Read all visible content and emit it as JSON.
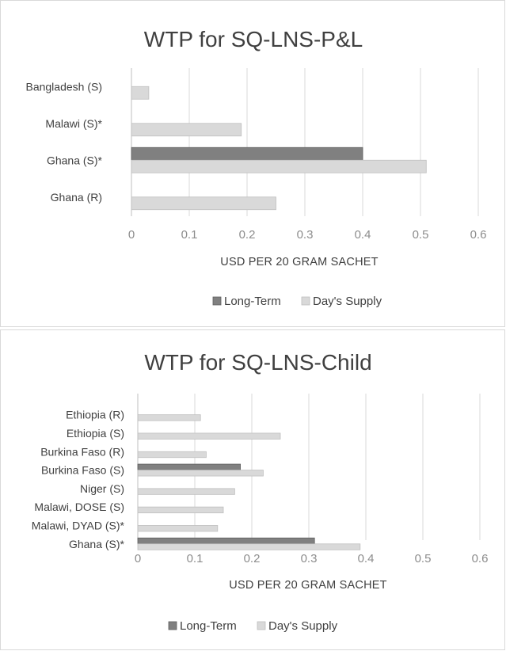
{
  "chart_data": [
    {
      "type": "bar",
      "orientation": "horizontal",
      "title": "WTP for SQ-LNS-P&L",
      "xlabel": "USD PER 20 GRAM SACHET",
      "categories": [
        "Bangladesh (S)",
        "Malawi (S)*",
        "Ghana (S)*",
        "Ghana (R)"
      ],
      "series": [
        {
          "name": "Long-Term",
          "color": "#808080",
          "values": [
            null,
            null,
            0.4,
            null
          ]
        },
        {
          "name": "Day's Supply",
          "color": "#d9d9d9",
          "values": [
            0.03,
            0.19,
            0.51,
            0.25
          ]
        }
      ],
      "xlim": [
        0,
        0.6
      ],
      "xticks": [
        "0",
        "0.1",
        "0.2",
        "0.3",
        "0.4",
        "0.5",
        "0.6"
      ],
      "grid": true,
      "legend": "bottom"
    },
    {
      "type": "bar",
      "orientation": "horizontal",
      "title": "WTP for SQ-LNS-Child",
      "xlabel": "USD PER 20 GRAM SACHET",
      "categories": [
        "Ethiopia (R)",
        "Ethiopia (S)",
        "Burkina Faso (R)",
        "Burkina Faso (S)",
        "Niger (S)",
        "Malawi, DOSE (S)",
        "Malawi, DYAD (S)*",
        "Ghana (S)*"
      ],
      "series": [
        {
          "name": "Long-Term",
          "color": "#808080",
          "values": [
            null,
            null,
            null,
            0.18,
            null,
            null,
            null,
            0.31
          ]
        },
        {
          "name": "Day's Supply",
          "color": "#d9d9d9",
          "values": [
            0.11,
            0.25,
            0.12,
            0.22,
            0.17,
            0.15,
            0.14,
            0.39
          ]
        }
      ],
      "xlim": [
        0,
        0.6
      ],
      "xticks": [
        "0",
        "0.1",
        "0.2",
        "0.3",
        "0.4",
        "0.5",
        "0.6"
      ],
      "grid": true,
      "legend": "bottom"
    }
  ]
}
